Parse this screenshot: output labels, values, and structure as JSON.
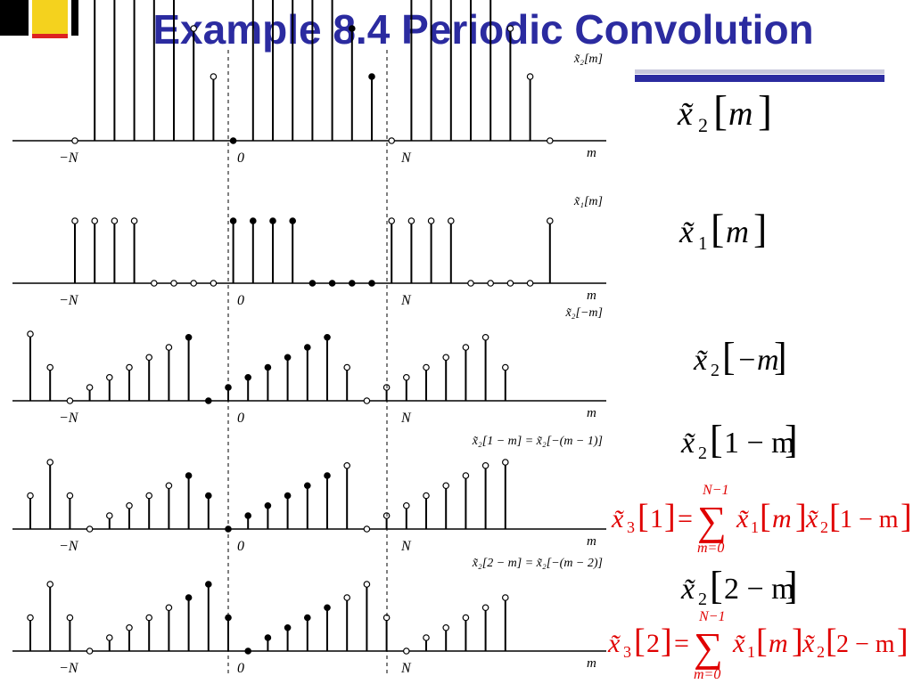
{
  "title": "Example 8.4 Periodic Convolution",
  "panels": [
    {
      "plot_label": "x̃₂[m]",
      "axis_var": "m",
      "tick_labels": [
        "−N",
        "0",
        "N"
      ],
      "values": [
        0,
        2,
        4,
        3.5,
        2.8,
        2.2,
        1.4,
        0.8,
        0,
        2,
        4,
        3.5,
        2.8,
        2.2,
        1.4,
        0.8,
        0,
        2,
        4,
        3.5,
        2.8,
        2.2,
        1.4,
        0.8,
        0
      ]
    },
    {
      "plot_label": "x̃₁[m]",
      "axis_var": "m",
      "tick_labels": [
        "−N",
        "0",
        "N"
      ],
      "values": [
        1,
        1,
        1,
        1,
        0,
        0,
        0,
        0,
        1,
        1,
        1,
        1,
        0,
        0,
        0,
        0,
        1,
        1,
        1,
        1,
        0,
        0,
        0,
        0,
        1
      ]
    },
    {
      "plot_label": "x̃₂[−m]",
      "axis_var": "m",
      "tick_labels": [
        "−N",
        "0",
        "N"
      ],
      "values": [
        1,
        0.5,
        0,
        0.2,
        0.35,
        0.5,
        0.65,
        0.8,
        0.95,
        0,
        0.2,
        0.35,
        0.5,
        0.65,
        0.8,
        0.95,
        0.5,
        0,
        0.2,
        0.35,
        0.5,
        0.65,
        0.8,
        0.95,
        0.5
      ]
    },
    {
      "plot_label": "x̃₂[1 − m] = x̃₂[−(m − 1)]",
      "axis_var": "m",
      "tick_labels": [
        "−N",
        "0",
        "N"
      ],
      "values": [
        0.5,
        1,
        0.5,
        0,
        0.2,
        0.35,
        0.5,
        0.65,
        0.8,
        0.5,
        0,
        0.2,
        0.35,
        0.5,
        0.65,
        0.8,
        0.95,
        0,
        0.2,
        0.35,
        0.5,
        0.65,
        0.8,
        0.95,
        1
      ]
    },
    {
      "plot_label": "x̃₂[2 − m] = x̃₂[−(m − 2)]",
      "axis_var": "m",
      "tick_labels": [
        "−N",
        "0",
        "N"
      ],
      "values": [
        0.5,
        1,
        0.5,
        0,
        0.2,
        0.35,
        0.5,
        0.65,
        0.8,
        1,
        0.5,
        0,
        0.2,
        0.35,
        0.5,
        0.65,
        0.8,
        1,
        0.5,
        0,
        0.2,
        0.35,
        0.5,
        0.65,
        0.8
      ]
    }
  ],
  "equations": {
    "e1": {
      "sym": "x̃",
      "sub": "2",
      "arg": "m"
    },
    "e2": {
      "sym": "x̃",
      "sub": "1",
      "arg": "m"
    },
    "e3": {
      "sym": "x̃",
      "sub": "2",
      "arg": "−m"
    },
    "e4": {
      "sym": "x̃",
      "sub": "2",
      "arg": "1 − m"
    },
    "e5": {
      "sym": "x̃",
      "sub": "2",
      "arg": "2 − m"
    },
    "conv1": {
      "lhs_sym": "x̃",
      "lhs_sub": "3",
      "lhs_arg": "1",
      "eq": "=",
      "sum": "∑",
      "upper": "N−1",
      "lower": "m=0",
      "f1_sym": "x̃",
      "f1_sub": "1",
      "f1_arg": "m",
      "f2_sym": "x̃",
      "f2_sub": "2",
      "f2_arg": "1 − m"
    },
    "conv2": {
      "lhs_sym": "x̃",
      "lhs_sub": "3",
      "lhs_arg": "2",
      "eq": "=",
      "sum": "∑",
      "upper": "N−1",
      "lower": "m=0",
      "f1_sym": "x̃",
      "f1_sub": "1",
      "f1_arg": "m",
      "f2_sym": "x̃",
      "f2_sub": "2",
      "f2_arg": "2 − m"
    }
  },
  "colors": {
    "title": "#2b2ba0",
    "accent_bar": "#2b2ba0",
    "equation_black": "#000000",
    "equation_red": "#e00000"
  }
}
